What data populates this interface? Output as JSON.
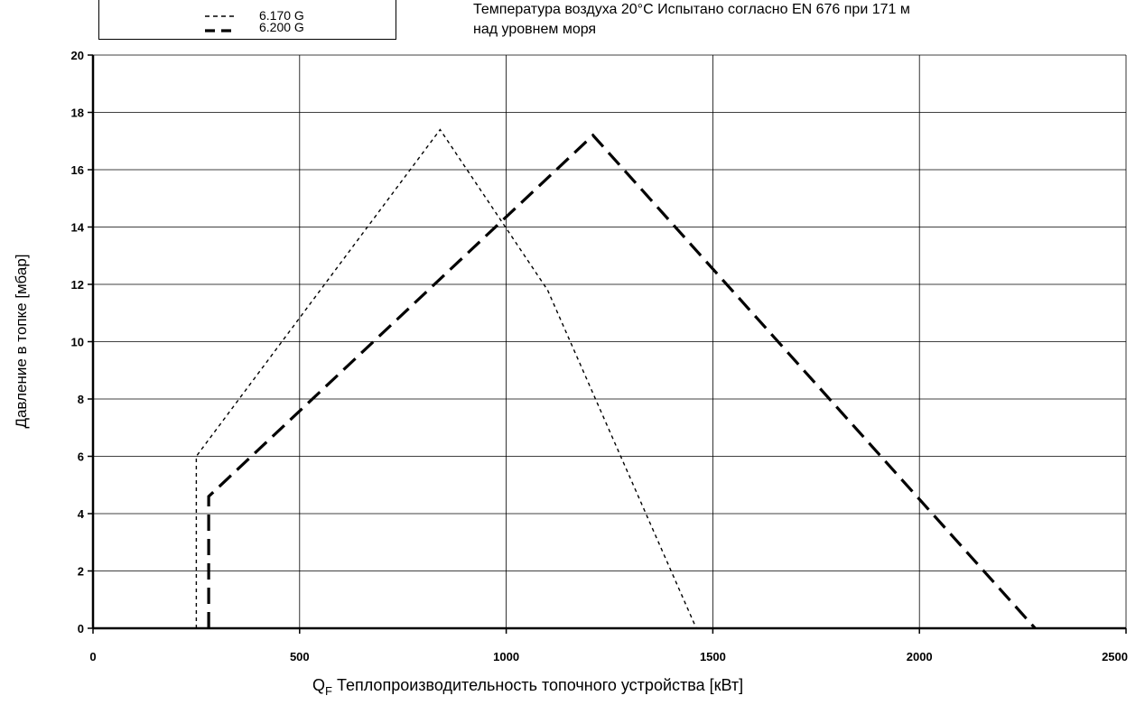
{
  "chart_data": {
    "type": "line",
    "title": "",
    "note": "Температура воздуха 20°С Испытано согласно EN 676 при 171 м\nнад уровнем моря",
    "xlabel_prefix": "Q",
    "xlabel_sub": "F",
    "xlabel_text": "Теплопроизводительность топочного устройства [кВт]",
    "ylabel": "Давление в топке [мбар]",
    "xlim": [
      0,
      2500
    ],
    "ylim": [
      0,
      20
    ],
    "xticks": [
      0,
      500,
      1000,
      1500,
      2000,
      2500
    ],
    "yticks": [
      0,
      2,
      4,
      6,
      8,
      10,
      12,
      14,
      16,
      18,
      20
    ],
    "grid": true,
    "legend_position": "top-left",
    "series": [
      {
        "name": "6.170 G",
        "style": "short-dash-thin",
        "color": "#000000",
        "points": [
          [
            250,
            0
          ],
          [
            250,
            6.0
          ],
          [
            840,
            17.4
          ],
          [
            1100,
            11.8
          ],
          [
            1460,
            0
          ]
        ]
      },
      {
        "name": "6.200 G",
        "style": "long-dash-thick",
        "color": "#000000",
        "points": [
          [
            280,
            0
          ],
          [
            280,
            4.6
          ],
          [
            1210,
            17.2
          ],
          [
            2280,
            0
          ]
        ]
      }
    ]
  }
}
